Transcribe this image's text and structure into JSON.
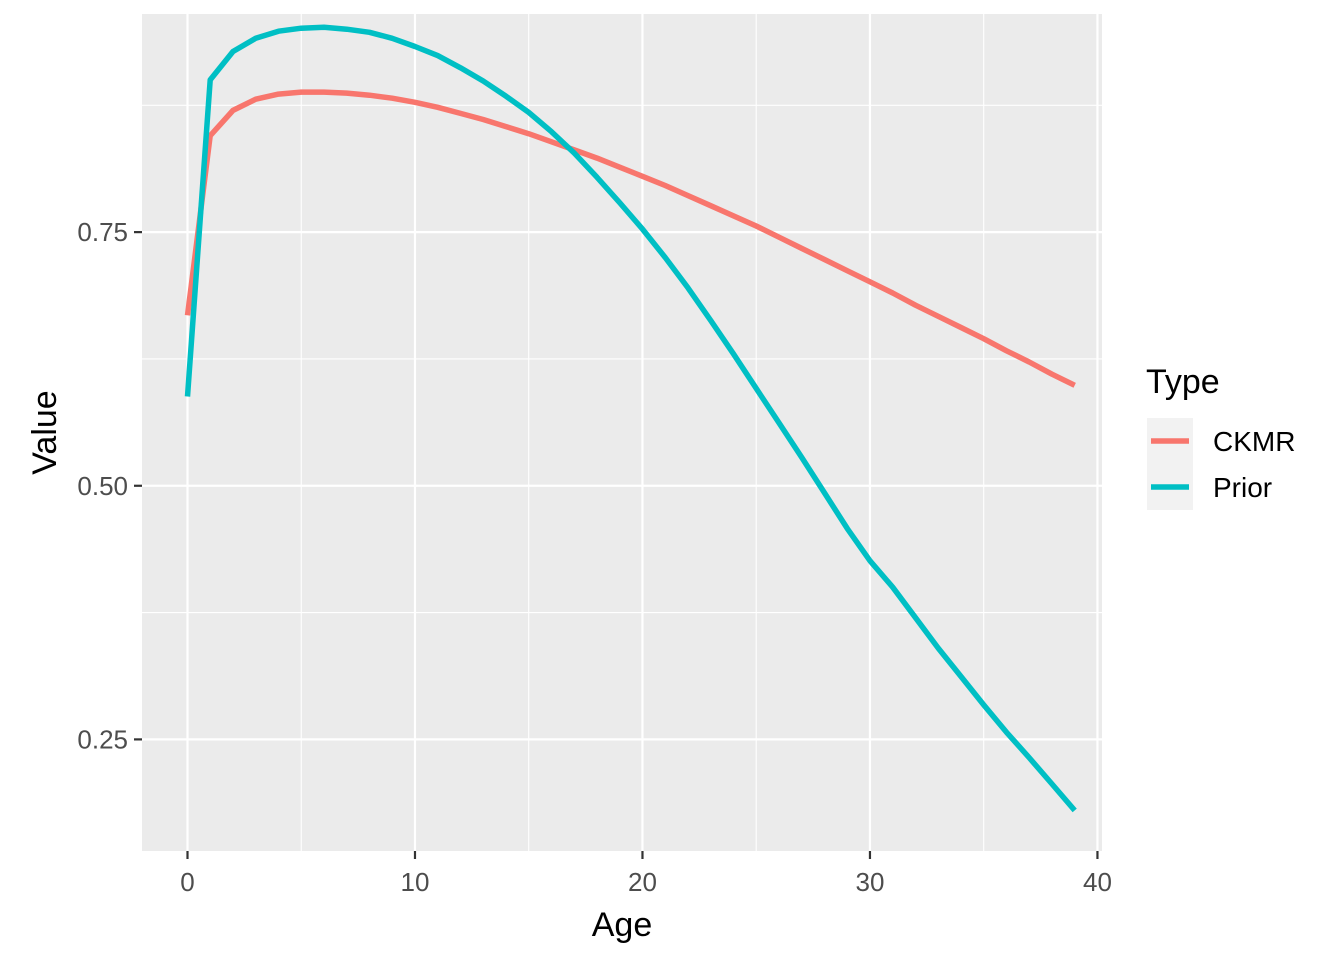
{
  "chart_data": {
    "type": "line",
    "title": "",
    "xlabel": "Age",
    "ylabel": "Value",
    "xlim": [
      -2,
      40.2
    ],
    "ylim": [
      0.14,
      0.965
    ],
    "x_ticks": [
      0,
      10,
      20,
      30,
      40
    ],
    "x_tick_labels": [
      "0",
      "10",
      "20",
      "30",
      "40"
    ],
    "y_ticks": [
      0.25,
      0.5,
      0.75
    ],
    "y_tick_labels": [
      "0.25",
      "0.50",
      "0.75"
    ],
    "grid": true,
    "legend": {
      "title": "Type",
      "placement": "right"
    },
    "series": [
      {
        "name": "CKMR",
        "color": "#F8766D",
        "x": [
          0,
          1,
          2,
          3,
          4,
          5,
          6,
          7,
          8,
          9,
          10,
          11,
          12,
          13,
          14,
          15,
          16,
          17,
          18,
          19,
          20,
          21,
          22,
          23,
          24,
          25,
          26,
          27,
          28,
          29,
          30,
          31,
          32,
          33,
          34,
          35,
          36,
          37,
          38,
          39
        ],
        "y": [
          0.668,
          0.845,
          0.87,
          0.881,
          0.886,
          0.888,
          0.888,
          0.887,
          0.885,
          0.882,
          0.878,
          0.873,
          0.867,
          0.861,
          0.854,
          0.847,
          0.839,
          0.831,
          0.823,
          0.814,
          0.805,
          0.796,
          0.786,
          0.776,
          0.766,
          0.756,
          0.745,
          0.734,
          0.723,
          0.712,
          0.701,
          0.69,
          0.678,
          0.667,
          0.656,
          0.645,
          0.633,
          0.622,
          0.61,
          0.599
        ]
      },
      {
        "name": "Prior",
        "color": "#00BFC4",
        "x": [
          0,
          1,
          2,
          3,
          4,
          5,
          6,
          7,
          8,
          9,
          10,
          11,
          12,
          13,
          14,
          15,
          16,
          17,
          18,
          19,
          20,
          21,
          22,
          23,
          24,
          25,
          26,
          27,
          28,
          29,
          30,
          31,
          32,
          33,
          34,
          35,
          36,
          37,
          38,
          39
        ],
        "y": [
          0.588,
          0.9,
          0.928,
          0.941,
          0.948,
          0.951,
          0.952,
          0.95,
          0.947,
          0.941,
          0.933,
          0.924,
          0.912,
          0.899,
          0.884,
          0.868,
          0.849,
          0.828,
          0.804,
          0.779,
          0.753,
          0.725,
          0.695,
          0.663,
          0.63,
          0.596,
          0.562,
          0.528,
          0.493,
          0.458,
          0.426,
          0.4,
          0.37,
          0.34,
          0.312,
          0.284,
          0.257,
          0.232,
          0.206,
          0.18
        ]
      }
    ]
  }
}
